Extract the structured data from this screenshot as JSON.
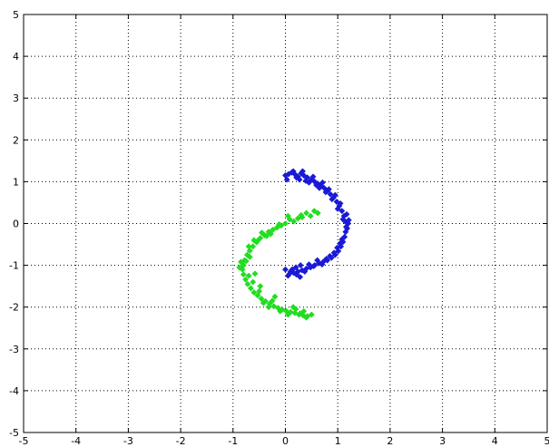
{
  "chart_data": {
    "type": "scatter",
    "xlim": [
      -5,
      5
    ],
    "ylim": [
      -5,
      5
    ],
    "grid": true,
    "x_ticks": [
      -5,
      -4,
      -3,
      -2,
      -1,
      0,
      1,
      2,
      3,
      4,
      5
    ],
    "y_ticks": [
      -5,
      -4,
      -3,
      -2,
      -1,
      0,
      1,
      2,
      3,
      4,
      5
    ],
    "x_tick_labels": [
      "-5",
      "-4",
      "-3",
      "-2",
      "-1",
      "0",
      "1",
      "2",
      "3",
      "4",
      "5"
    ],
    "y_tick_labels": [
      "-5",
      "-4",
      "-3",
      "-2",
      "-1",
      "0",
      "1",
      "2",
      "3",
      "4",
      "5"
    ],
    "colors": {
      "axes": "#000000",
      "grid": "#000000"
    },
    "series": [
      {
        "color": "#1a1ad6",
        "x": [
          0.0,
          0.06,
          0.12,
          0.18,
          0.24,
          0.3,
          0.36,
          0.42,
          0.5,
          0.56,
          0.62,
          0.68,
          0.74,
          0.8,
          0.86,
          0.92,
          0.98,
          1.03,
          1.08,
          1.12,
          1.14,
          1.16,
          1.15,
          1.13,
          1.1,
          1.06,
          1.01,
          0.95,
          0.88,
          0.8,
          0.72,
          0.64,
          0.56,
          0.48,
          0.4,
          0.32,
          0.24,
          0.16,
          0.08,
          0.0,
          0.03,
          0.15,
          0.21,
          0.27,
          0.33,
          0.39,
          0.45,
          0.53,
          0.59,
          0.65,
          0.71,
          0.77,
          0.83,
          0.89,
          0.95,
          1.0,
          1.05,
          1.1,
          1.17,
          1.2,
          1.18,
          1.21,
          1.08,
          1.04,
          0.99,
          0.93,
          0.85,
          0.78,
          0.7,
          0.61,
          0.54,
          0.45,
          0.37,
          0.29,
          0.21,
          0.13,
          0.05,
          0.1,
          0.2,
          0.28
        ],
        "y": [
          1.15,
          1.18,
          1.22,
          1.18,
          1.12,
          1.2,
          1.14,
          1.1,
          1.05,
          1.0,
          0.95,
          0.9,
          0.85,
          0.78,
          0.7,
          0.62,
          0.52,
          0.42,
          0.3,
          0.18,
          0.05,
          -0.08,
          -0.2,
          -0.32,
          -0.44,
          -0.55,
          -0.66,
          -0.75,
          -0.82,
          -0.88,
          -0.92,
          -0.95,
          -1.0,
          -1.05,
          -1.08,
          -1.12,
          -1.15,
          -1.18,
          -1.2,
          -1.1,
          1.05,
          1.25,
          1.1,
          1.05,
          1.25,
          1.02,
          0.98,
          1.12,
          0.92,
          0.85,
          0.98,
          0.75,
          0.82,
          0.58,
          0.68,
          0.35,
          0.48,
          0.1,
          0.22,
          0.0,
          -0.12,
          0.08,
          -0.38,
          -0.48,
          -0.58,
          -0.7,
          -0.78,
          -0.85,
          -0.98,
          -0.88,
          -1.02,
          -0.98,
          -1.15,
          -1.0,
          -1.22,
          -1.1,
          -1.25,
          -1.15,
          -1.05,
          -1.28
        ]
      },
      {
        "color": "#22dd22",
        "x": [
          0.62,
          0.55,
          0.48,
          0.4,
          0.32,
          0.24,
          0.16,
          0.08,
          0.0,
          -0.08,
          -0.16,
          -0.24,
          -0.32,
          -0.4,
          -0.48,
          -0.55,
          -0.62,
          -0.68,
          -0.73,
          -0.78,
          -0.8,
          -0.82,
          -0.8,
          -0.76,
          -0.72,
          -0.66,
          -0.6,
          -0.53,
          -0.46,
          -0.38,
          -0.3,
          -0.22,
          -0.14,
          -0.06,
          0.02,
          0.1,
          0.18,
          0.26,
          0.34,
          0.42,
          0.5,
          0.3,
          0.05,
          -0.12,
          -0.28,
          -0.45,
          -0.6,
          -0.7,
          -0.75,
          -0.85,
          -0.88,
          -0.7,
          -0.62,
          -0.5,
          -0.42,
          -0.25,
          -0.1,
          0.05,
          0.2,
          0.35,
          0.4,
          0.28,
          -0.52,
          -0.36,
          0.15,
          -0.2,
          -0.58,
          -0.68,
          -0.48,
          -0.32
        ],
        "y": [
          0.25,
          0.3,
          0.18,
          0.25,
          0.15,
          0.12,
          0.05,
          0.1,
          0.0,
          -0.05,
          -0.1,
          -0.15,
          -0.2,
          -0.28,
          -0.35,
          -0.45,
          -0.55,
          -0.65,
          -0.75,
          -0.88,
          -1.0,
          -1.1,
          -1.22,
          -1.34,
          -1.45,
          -1.55,
          -1.65,
          -1.72,
          -1.8,
          -1.86,
          -1.92,
          -1.98,
          -2.02,
          -2.06,
          -2.1,
          -2.12,
          -2.14,
          -2.18,
          -2.2,
          -2.22,
          -2.18,
          0.2,
          0.18,
          -0.02,
          -0.25,
          -0.22,
          -0.4,
          -0.55,
          -0.9,
          -0.92,
          -1.05,
          -1.25,
          -1.4,
          -1.62,
          -1.9,
          -1.85,
          -2.1,
          -2.18,
          -2.05,
          -2.1,
          -2.25,
          -2.15,
          -0.4,
          -0.3,
          -2.0,
          -1.75,
          -1.2,
          -0.8,
          -1.5,
          -2.0
        ]
      }
    ]
  }
}
